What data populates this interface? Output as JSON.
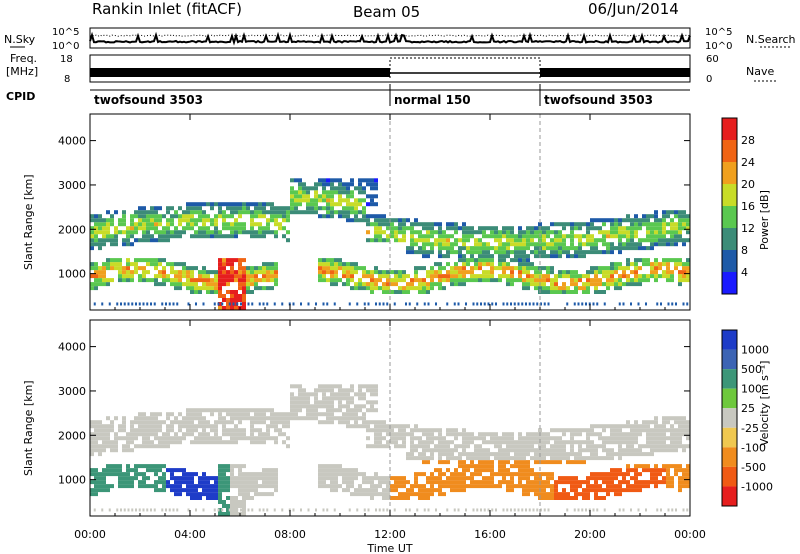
{
  "header": {
    "station": "Rankin Inlet (fitACF)",
    "beam": "Beam 05",
    "date": "06/Jun/2014"
  },
  "panels": {
    "nsky_label": "N.Sky",
    "nsearch_label": "N.Search",
    "noise_ticks": [
      "10^5",
      "10^0"
    ],
    "freq_label_line1": "Freq.",
    "freq_label_line2": "[MHz]",
    "freq_ticks": [
      "18",
      "8"
    ],
    "nave_label": "Nave",
    "nave_ticks": [
      "60",
      "0"
    ],
    "cpid_label": "CPID",
    "cpid_segments": [
      {
        "label": "twofsound 3503",
        "start_hour": 0,
        "end_hour": 12
      },
      {
        "label": "normal 150",
        "start_hour": 12,
        "end_hour": 18
      },
      {
        "label": "twofsound 3503",
        "start_hour": 18,
        "end_hour": 24
      }
    ]
  },
  "colors": {
    "power": [
      "#1a1aff",
      "#1e5aa8",
      "#3c8c78",
      "#5ac850",
      "#c8dc28",
      "#f0a01e",
      "#f06414",
      "#e61e1e"
    ],
    "velocity": [
      "#1e3cc8",
      "#3c64b4",
      "#3c9678",
      "#6ec83c",
      "#c8c8c0",
      "#f0c850",
      "#f08c1e",
      "#f05a14",
      "#e61e1e"
    ]
  },
  "chart_data": [
    {
      "type": "heatmap",
      "name": "power",
      "ylabel": "Slant Range [km]",
      "xlabel": "",
      "xlim": [
        0,
        24
      ],
      "ylim": [
        180,
        4600
      ],
      "x_ticks": [
        "00:00",
        "04:00",
        "08:00",
        "12:00",
        "16:00",
        "20:00",
        "00:00"
      ],
      "y_ticks": [
        1000,
        2000,
        3000,
        4000
      ],
      "colorbar_label": "Power [dB]",
      "colorbar_ticks": [
        4,
        8,
        12,
        16,
        20,
        24,
        28
      ]
    },
    {
      "type": "heatmap",
      "name": "velocity",
      "ylabel": "Slant Range [km]",
      "xlabel": "Time UT",
      "xlim": [
        0,
        24
      ],
      "ylim": [
        180,
        4600
      ],
      "x_ticks": [
        "00:00",
        "04:00",
        "08:00",
        "12:00",
        "16:00",
        "20:00",
        "00:00"
      ],
      "y_ticks": [
        1000,
        2000,
        3000,
        4000
      ],
      "colorbar_label": "Velocity [m s⁻¹]",
      "colorbar_ticks": [
        1000,
        500,
        100,
        25,
        -25,
        -100,
        -500,
        -1000
      ]
    }
  ]
}
